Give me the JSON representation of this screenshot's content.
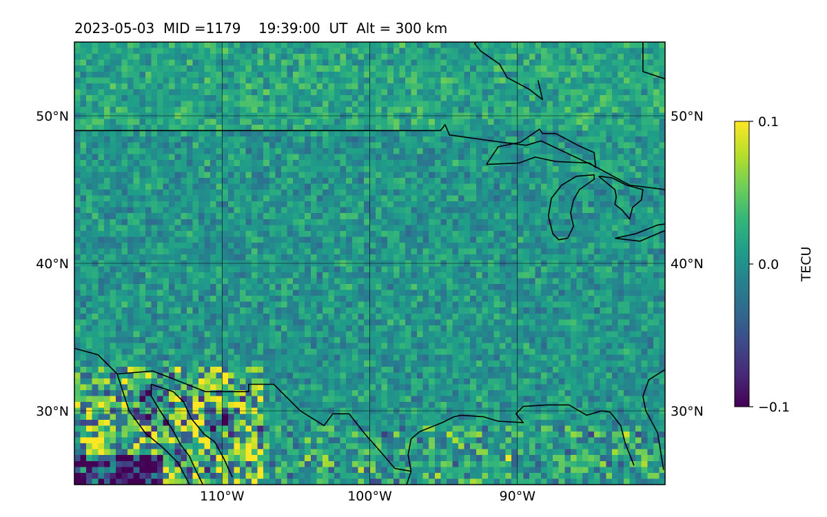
{
  "title": "2023-05-03  MID =1179    19:39:00  UT  Alt = 300 km",
  "map": {
    "extent": {
      "lon": [
        -120,
        -80
      ],
      "lat": [
        25,
        55
      ]
    },
    "grid_lons": [
      -110,
      -100,
      -90
    ],
    "grid_lats": [
      30,
      40,
      50
    ],
    "lon_labels": [
      "110°W",
      "100°W",
      "90°W"
    ],
    "lat_labels": [
      "30°N",
      "40°N",
      "50°N"
    ],
    "projection": "PlateCarree",
    "grid": true
  },
  "colorbar": {
    "label": "TECU",
    "colormap": "viridis",
    "vmin": -0.1,
    "vmax": 0.1,
    "tick_labels": [
      "0.1",
      "0.0",
      "−0.1"
    ]
  },
  "coastlines": [
    {
      "id": "us-canada-border",
      "points": [
        [
          -120,
          49
        ],
        [
          -95.2,
          49
        ],
        [
          -94.9,
          49.4
        ],
        [
          -94.6,
          48.7
        ],
        [
          -91,
          48.2
        ],
        [
          -89.4,
          48
        ],
        [
          -88.4,
          48.3
        ],
        [
          -84.8,
          46.6
        ],
        [
          -82.4,
          45.3
        ],
        [
          -80,
          45
        ]
      ]
    },
    {
      "id": "lake-superior",
      "points": [
        [
          -92.1,
          46.7
        ],
        [
          -89.9,
          46.8
        ],
        [
          -88.8,
          47.2
        ],
        [
          -87.4,
          46.9
        ],
        [
          -85.1,
          46.8
        ],
        [
          -84.7,
          46.5
        ],
        [
          -84.8,
          47.5
        ],
        [
          -85.9,
          48
        ],
        [
          -87.4,
          48.8
        ],
        [
          -88.3,
          48.8
        ],
        [
          -88.5,
          49.1
        ],
        [
          -89.8,
          48.2
        ],
        [
          -91.3,
          47.9
        ],
        [
          -92.1,
          46.7
        ]
      ]
    },
    {
      "id": "lake-michigan",
      "points": [
        [
          -84.8,
          46
        ],
        [
          -86,
          45.9
        ],
        [
          -87,
          45.3
        ],
        [
          -87.7,
          44.4
        ],
        [
          -87.9,
          43.2
        ],
        [
          -87.6,
          42
        ],
        [
          -87.2,
          41.6
        ],
        [
          -86.6,
          41.7
        ],
        [
          -86.2,
          42.5
        ],
        [
          -86.4,
          43.4
        ],
        [
          -86.2,
          44.3
        ],
        [
          -85.8,
          45
        ],
        [
          -84.8,
          45.7
        ],
        [
          -84.8,
          46
        ]
      ]
    },
    {
      "id": "lake-huron",
      "points": [
        [
          -84.5,
          45.9
        ],
        [
          -83.6,
          45.8
        ],
        [
          -82.6,
          45.3
        ],
        [
          -81.5,
          45
        ],
        [
          -81.6,
          44.3
        ],
        [
          -82.2,
          43.8
        ],
        [
          -82.4,
          43
        ],
        [
          -82.9,
          43.6
        ],
        [
          -83.4,
          44
        ],
        [
          -83.3,
          44.5
        ],
        [
          -83.4,
          45
        ],
        [
          -84.5,
          45.9
        ]
      ]
    },
    {
      "id": "lake-erie",
      "points": [
        [
          -83.4,
          41.7
        ],
        [
          -82,
          42
        ],
        [
          -80.5,
          42.6
        ],
        [
          -79,
          42.8
        ],
        [
          -79.3,
          42.5
        ],
        [
          -80.3,
          42.1
        ],
        [
          -81.7,
          41.5
        ],
        [
          -83.4,
          41.7
        ]
      ]
    },
    {
      "id": "hudson-bay-south",
      "points": [
        [
          -94.2,
          59
        ],
        [
          -93.5,
          55.5
        ],
        [
          -92.5,
          55.2
        ],
        [
          -92.9,
          54.9
        ],
        [
          -92.5,
          54.4
        ],
        [
          -91.2,
          53.5
        ],
        [
          -90.7,
          52.6
        ],
        [
          -89.2,
          51.8
        ],
        [
          -88.3,
          51.1
        ],
        [
          -88.6,
          52.4
        ]
      ]
    },
    {
      "id": "james-bay",
      "points": [
        [
          -81.5,
          55
        ],
        [
          -81.5,
          53
        ],
        [
          -80,
          52.5
        ]
      ]
    },
    {
      "id": "mexico-border-east",
      "points": [
        [
          -117.1,
          32.5
        ],
        [
          -114.7,
          32.7
        ],
        [
          -111.1,
          31.3
        ],
        [
          -108.2,
          31.3
        ],
        [
          -108.2,
          31.8
        ],
        [
          -106.5,
          31.8
        ],
        [
          -104.7,
          30
        ],
        [
          -103.1,
          29
        ],
        [
          -102.5,
          29.8
        ],
        [
          -101.4,
          29.8
        ],
        [
          -100.3,
          28.4
        ],
        [
          -99.5,
          27.5
        ],
        [
          -98.3,
          26.1
        ],
        [
          -97.2,
          25.9
        ]
      ]
    },
    {
      "id": "california-coast",
      "points": [
        [
          -124.2,
          35
        ],
        [
          -120.6,
          34.4
        ],
        [
          -118.4,
          33.8
        ],
        [
          -117.1,
          32.5
        ]
      ]
    },
    {
      "id": "baja-gulf-west",
      "points": [
        [
          -117.1,
          32.5
        ],
        [
          -116.3,
          30
        ],
        [
          -115.2,
          28.5
        ],
        [
          -114,
          27.5
        ],
        [
          -113,
          26.5
        ],
        [
          -112.2,
          25
        ]
      ]
    },
    {
      "id": "gulf-of-california",
      "points": [
        [
          -114.8,
          31.8
        ],
        [
          -114.8,
          31
        ],
        [
          -114.2,
          30
        ],
        [
          -113.4,
          28.8
        ],
        [
          -112.8,
          27.7
        ],
        [
          -112.2,
          26.9
        ],
        [
          -111.8,
          26
        ],
        [
          -111.3,
          25
        ]
      ]
    },
    {
      "id": "sonora-coast",
      "points": [
        [
          -114.8,
          31.8
        ],
        [
          -113.3,
          31.3
        ],
        [
          -112.6,
          30.6
        ],
        [
          -112.1,
          29.5
        ],
        [
          -111.2,
          28.4
        ],
        [
          -110.5,
          27.9
        ],
        [
          -109.9,
          26.8
        ],
        [
          -109.3,
          25.5
        ]
      ]
    },
    {
      "id": "texas-gulf-coast",
      "points": [
        [
          -97.2,
          25.9
        ],
        [
          -97.4,
          27
        ],
        [
          -97.2,
          28.1
        ],
        [
          -96.6,
          28.6
        ],
        [
          -95.1,
          29.2
        ],
        [
          -94.3,
          29.6
        ],
        [
          -93.8,
          29.7
        ],
        [
          -92.3,
          29.6
        ],
        [
          -91.3,
          29.3
        ],
        [
          -89.6,
          29.2
        ],
        [
          -90.1,
          29.8
        ],
        [
          -89.6,
          30.3
        ],
        [
          -88,
          30.4
        ],
        [
          -86.5,
          30.4
        ],
        [
          -85.3,
          29.7
        ],
        [
          -84.3,
          30
        ],
        [
          -83.7,
          29.9
        ],
        [
          -83,
          29
        ],
        [
          -82.7,
          27.8
        ],
        [
          -82.1,
          26.3
        ]
      ]
    },
    {
      "id": "florida-atlantic",
      "points": [
        [
          -80.1,
          26
        ],
        [
          -80.5,
          28.5
        ],
        [
          -81.3,
          30
        ],
        [
          -81.5,
          31
        ],
        [
          -81.1,
          32.1
        ],
        [
          -80,
          32.8
        ]
      ]
    },
    {
      "id": "tamaulipas-coast",
      "points": [
        [
          -97.2,
          25.9
        ],
        [
          -97.5,
          25
        ]
      ]
    }
  ]
}
